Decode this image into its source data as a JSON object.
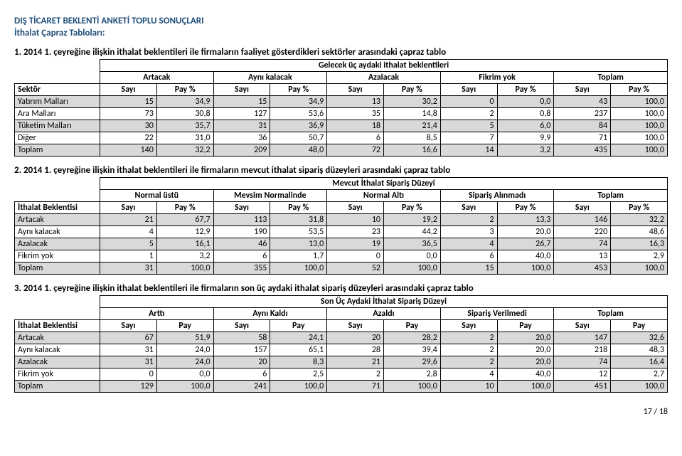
{
  "title": "DIŞ TİCARET BEKLENTİ ANKETİ TOPLU SONUÇLARI",
  "subtitle": "İthalat Çapraz Tabloları:",
  "page_number": "17 / 18",
  "t1": {
    "heading": "1.  2014 1. çeyreğine ilişkin ithalat beklentileri ile firmaların faaliyet gösterdikleri sektörler arasındaki çapraz tablo",
    "merge_title": "Gelecek üç aydaki ithalat beklentileri",
    "groups": [
      "Artacak",
      "Aynı kalacak",
      "Azalacak",
      "Fikrim yok",
      "Toplam"
    ],
    "row_header_label": "Sektör",
    "sub_cols": [
      "Sayı",
      "Pay %",
      "Sayı",
      "Pay %",
      "Sayı",
      "Pay %",
      "Sayı",
      "Pay %",
      "Sayı",
      "Pay %"
    ],
    "rows": [
      {
        "label": "Yatırım Malları",
        "vals": [
          "15",
          "34,9",
          "15",
          "34,9",
          "13",
          "30,2",
          "0",
          "0,0",
          "43",
          "100,0"
        ],
        "shaded": true
      },
      {
        "label": "Ara Malları",
        "vals": [
          "73",
          "30,8",
          "127",
          "53,6",
          "35",
          "14,8",
          "2",
          "0,8",
          "237",
          "100,0"
        ],
        "shaded": false
      },
      {
        "label": "Tüketim Malları",
        "vals": [
          "30",
          "35,7",
          "31",
          "36,9",
          "18",
          "21,4",
          "5",
          "6,0",
          "84",
          "100,0"
        ],
        "shaded": true
      },
      {
        "label": "Diğer",
        "vals": [
          "22",
          "31,0",
          "36",
          "50,7",
          "6",
          "8,5",
          "7",
          "9,9",
          "71",
          "100,0"
        ],
        "shaded": false
      },
      {
        "label": "Toplam",
        "vals": [
          "140",
          "32,2",
          "209",
          "48,0",
          "72",
          "16,6",
          "14",
          "3,2",
          "435",
          "100,0"
        ],
        "shaded": true
      }
    ]
  },
  "t2": {
    "heading": "2.  2014 1. çeyreğine ilişkin ithalat beklentileri ile firmaların mevcut ithalat sipariş düzeyleri arasındaki çapraz tablo",
    "merge_title": "Mevcut İthalat Sipariş Düzeyi",
    "groups": [
      "Normal üstü",
      "Mevsim Normalinde",
      "Normal Altı",
      "Sipariş Alınmadı",
      "Toplam"
    ],
    "row_header_label": "İthalat Beklentisi",
    "sub_cols": [
      "Sayı",
      "Pay %",
      "Sayı",
      "Pay %",
      "Sayı",
      "Pay %",
      "Sayı",
      "Pay %",
      "Sayı",
      "Pay %"
    ],
    "rows": [
      {
        "label": "Artacak",
        "vals": [
          "21",
          "67,7",
          "113",
          "31,8",
          "10",
          "19,2",
          "2",
          "13,3",
          "146",
          "32,2"
        ],
        "shaded": true
      },
      {
        "label": "Aynı kalacak",
        "vals": [
          "4",
          "12,9",
          "190",
          "53,5",
          "23",
          "44,2",
          "3",
          "20,0",
          "220",
          "48,6"
        ],
        "shaded": false
      },
      {
        "label": "Azalacak",
        "vals": [
          "5",
          "16,1",
          "46",
          "13,0",
          "19",
          "36,5",
          "4",
          "26,7",
          "74",
          "16,3"
        ],
        "shaded": true
      },
      {
        "label": "Fikrim yok",
        "vals": [
          "1",
          "3,2",
          "6",
          "1,7",
          "0",
          "0,0",
          "6",
          "40,0",
          "13",
          "2,9"
        ],
        "shaded": false
      },
      {
        "label": "Toplam",
        "vals": [
          "31",
          "100,0",
          "355",
          "100,0",
          "52",
          "100,0",
          "15",
          "100,0",
          "453",
          "100,0"
        ],
        "shaded": true
      }
    ]
  },
  "t3": {
    "heading": "3.  2014 1. çeyreğine ilişkin ithalat beklentileri ile firmaların son üç aydaki ithalat sipariş düzeyleri arasındaki çapraz tablo",
    "merge_title": "Son Üç Aydaki İthalat Sipariş Düzeyi",
    "groups": [
      "Arttı",
      "Aynı Kaldı",
      "Azaldı",
      "Sipariş Verilmedi",
      "Toplam"
    ],
    "row_header_label": "İthalat Beklentisi",
    "sub_cols": [
      "Sayı",
      "Pay",
      "Sayı",
      "Pay",
      "Sayı",
      "Pay",
      "Sayı",
      "Pay",
      "Sayı",
      "Pay"
    ],
    "rows": [
      {
        "label": "Artacak",
        "vals": [
          "67",
          "51,9",
          "58",
          "24,1",
          "20",
          "28,2",
          "2",
          "20,0",
          "147",
          "32,6"
        ],
        "shaded": true
      },
      {
        "label": "Aynı kalacak",
        "vals": [
          "31",
          "24,0",
          "157",
          "65,1",
          "28",
          "39,4",
          "2",
          "20,0",
          "218",
          "48,3"
        ],
        "shaded": false
      },
      {
        "label": "Azalacak",
        "vals": [
          "31",
          "24,0",
          "20",
          "8,3",
          "21",
          "29,6",
          "2",
          "20,0",
          "74",
          "16,4"
        ],
        "shaded": true
      },
      {
        "label": "Fikrim yok",
        "vals": [
          "0",
          "0,0",
          "6",
          "2,5",
          "2",
          "2,8",
          "4",
          "40,0",
          "12",
          "2,7"
        ],
        "shaded": false
      },
      {
        "label": "Toplam",
        "vals": [
          "129",
          "100,0",
          "241",
          "100,0",
          "71",
          "100,0",
          "10",
          "100,0",
          "451",
          "100,0"
        ],
        "shaded": true
      }
    ]
  }
}
